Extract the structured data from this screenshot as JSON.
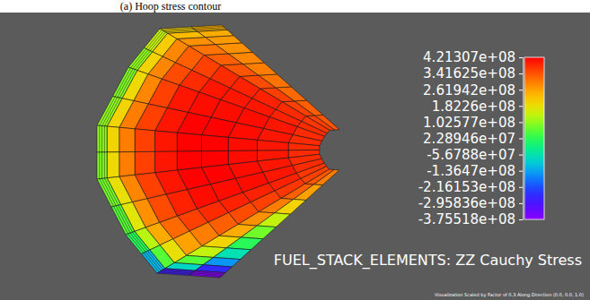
{
  "chart_data": {
    "type": "mesh_contour",
    "caption": "(a)  Hoop stress contour",
    "title": "FUEL_STACK_ELEMENTS: ZZ Cauchy Stress",
    "footnote": "Visualization Scaled by Factor of 0.3 Along Direction (0.0, 0.0, 1.0)",
    "colorbar": {
      "range": [
        -375518000.0,
        421307000.0
      ],
      "ticks": [
        {
          "value": 421307000.0,
          "label": "4.21307e+08"
        },
        {
          "value": 341625000.0,
          "label": "3.41625e+08"
        },
        {
          "value": 261942000.0,
          "label": "2.61942e+08"
        },
        {
          "value": 182260000.0,
          "label": "1.8226e+08"
        },
        {
          "value": 102577000.0,
          "label": "1.02577e+08"
        },
        {
          "value": 22894600.0,
          "label": "2.28946e+07"
        },
        {
          "value": -56788000.0,
          "label": "-5.6788e+07"
        },
        {
          "value": -136470000.0,
          "label": "-1.3647e+08"
        },
        {
          "value": -216153000.0,
          "label": "-2.16153e+08"
        },
        {
          "value": -295836000.0,
          "label": "-2.95836e+08"
        },
        {
          "value": -375518000.0,
          "label": "-3.75518e+08"
        }
      ]
    },
    "cells": [
      [
        340000000.0,
        360000000.0,
        370000000.0,
        380000000.0,
        380000000.0,
        380000000.0,
        380000000.0,
        380000000.0,
        380000000.0,
        380000000.0,
        370000000.0,
        360000000.0,
        340000000.0,
        300000000.0
      ],
      [
        330000000.0,
        360000000.0,
        380000000.0,
        390000000.0,
        400000000.0,
        400000000.0,
        400000000.0,
        400000000.0,
        400000000.0,
        400000000.0,
        390000000.0,
        370000000.0,
        330000000.0,
        260000000.0
      ],
      [
        320000000.0,
        360000000.0,
        390000000.0,
        400000000.0,
        410000000.0,
        410000000.0,
        410000000.0,
        410000000.0,
        410000000.0,
        410000000.0,
        390000000.0,
        360000000.0,
        300000000.0,
        200000000.0
      ],
      [
        310000000.0,
        350000000.0,
        390000000.0,
        400000000.0,
        410000000.0,
        420000000.0,
        420000000.0,
        420000000.0,
        420000000.0,
        410000000.0,
        390000000.0,
        350000000.0,
        280000000.0,
        140000000.0
      ],
      [
        300000000.0,
        340000000.0,
        380000000.0,
        400000000.0,
        410000000.0,
        420000000.0,
        420000000.0,
        420000000.0,
        420000000.0,
        410000000.0,
        380000000.0,
        330000000.0,
        250000000.0,
        80000000.0
      ],
      [
        290000000.0,
        330000000.0,
        360000000.0,
        380000000.0,
        400000000.0,
        400000000.0,
        400000000.0,
        400000000.0,
        400000000.0,
        390000000.0,
        360000000.0,
        300000000.0,
        200000000.0,
        20000000.0
      ],
      [
        280000000.0,
        310000000.0,
        330000000.0,
        350000000.0,
        360000000.0,
        360000000.0,
        360000000.0,
        360000000.0,
        360000000.0,
        350000000.0,
        320000000.0,
        260000000.0,
        140000000.0,
        -60000000.0
      ],
      [
        270000000.0,
        280000000.0,
        290000000.0,
        290000000.0,
        290000000.0,
        300000000.0,
        300000000.0,
        300000000.0,
        290000000.0,
        280000000.0,
        250000000.0,
        180000000.0,
        60000000.0,
        -150000000.0
      ],
      [
        250000000.0,
        230000000.0,
        210000000.0,
        200000000.0,
        190000000.0,
        200000000.0,
        200000000.0,
        190000000.0,
        180000000.0,
        170000000.0,
        130000000.0,
        60000000.0,
        -80000000.0,
        -260000000.0
      ],
      [
        240000000.0,
        200000000.0,
        140000000.0,
        100000000.0,
        90000000.0,
        100000000.0,
        100000000.0,
        90000000.0,
        80000000.0,
        60000000.0,
        20000000.0,
        -120000000.0,
        -280000000.0,
        -370000000.0
      ]
    ]
  }
}
